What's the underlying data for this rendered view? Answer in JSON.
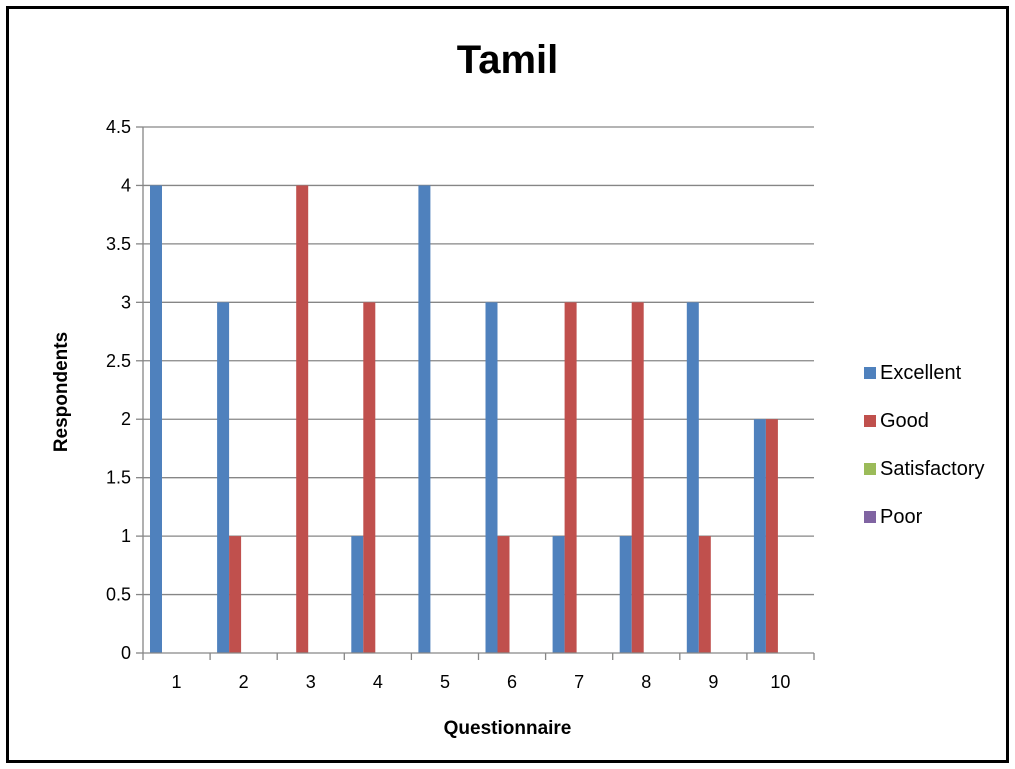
{
  "chart_data": {
    "type": "bar",
    "title": "Tamil",
    "xlabel": "Questionnaire",
    "ylabel": "Respondents",
    "categories": [
      "1",
      "2",
      "3",
      "4",
      "5",
      "6",
      "7",
      "8",
      "9",
      "10"
    ],
    "y_ticks": [
      "0",
      "0.5",
      "1",
      "1.5",
      "2",
      "2.5",
      "3",
      "3.5",
      "4",
      "4.5"
    ],
    "ylim": [
      0,
      4.5
    ],
    "grid": true,
    "legend_position": "right",
    "series": [
      {
        "name": "Excellent",
        "color": "#4F81BD",
        "values": [
          4,
          3,
          0,
          1,
          4,
          3,
          1,
          1,
          3,
          2
        ]
      },
      {
        "name": "Good",
        "color": "#C0504D",
        "values": [
          0,
          1,
          4,
          3,
          0,
          1,
          3,
          3,
          1,
          2
        ]
      },
      {
        "name": "Satisfactory",
        "color": "#9BBB59",
        "values": [
          0,
          0,
          0,
          0,
          0,
          0,
          0,
          0,
          0,
          0
        ]
      },
      {
        "name": "Poor",
        "color": "#8064A2",
        "values": [
          0,
          0,
          0,
          0,
          0,
          0,
          0,
          0,
          0,
          0
        ]
      }
    ]
  }
}
